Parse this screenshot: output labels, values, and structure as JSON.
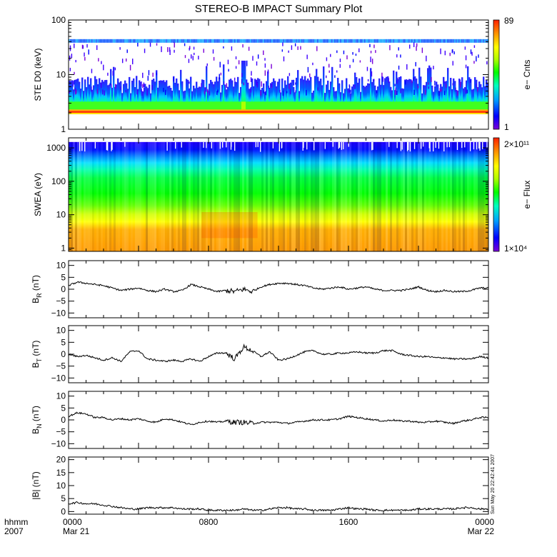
{
  "title": "STEREO-B IMPACT Summary Plot",
  "timestamp": "Sun May 20 22:42:41 2007",
  "time_axis": {
    "label_top": "hhmm",
    "label_bottom": "2007",
    "ticks": [
      {
        "hour": 0,
        "top": "0000",
        "bottom": "Mar 21"
      },
      {
        "hour": 8,
        "top": "0800",
        "bottom": ""
      },
      {
        "hour": 16,
        "top": "1600",
        "bottom": ""
      },
      {
        "hour": 24,
        "top": "0000",
        "bottom": "Mar 22"
      }
    ]
  },
  "colorbars": {
    "ste": {
      "max_label": "89",
      "min_label": "1",
      "title": "e− Cnts"
    },
    "swea": {
      "max_label": "2×10¹¹",
      "min_label": "1×10⁴",
      "title": "e− Flux"
    }
  },
  "colors": {
    "spectrum": [
      "#7b00d8",
      "#0000ff",
      "#00a0ff",
      "#00ffc0",
      "#00ff00",
      "#b0ff00",
      "#ffff00",
      "#ff9000",
      "#ff2000"
    ],
    "line": "#000000"
  },
  "chart_data": [
    {
      "type": "heatmap",
      "id": "ste",
      "ylabel": "STE D0 (keV)",
      "yscale": "log",
      "ylim": [
        1,
        100
      ],
      "yticks": [
        {
          "v": 1,
          "label": "1"
        },
        {
          "v": 10,
          "label": "10"
        },
        {
          "v": 100,
          "label": "100"
        }
      ],
      "xlim": [
        0,
        24
      ],
      "features": {
        "core_band_keV": [
          2.0,
          2.3
        ],
        "fixed_line_keV": 42,
        "event_hour": 10.0
      }
    },
    {
      "type": "heatmap",
      "id": "swea",
      "ylabel": "SWEA (eV)",
      "yscale": "log",
      "ylim": [
        0.8,
        2000
      ],
      "yticks": [
        {
          "v": 1,
          "label": "1"
        },
        {
          "v": 10,
          "label": "10"
        },
        {
          "v": 100,
          "label": "100"
        },
        {
          "v": 1000,
          "label": "1000"
        }
      ],
      "xlim": [
        0,
        24
      ],
      "features": {
        "top_energy_eV": 1500
      }
    },
    {
      "type": "line",
      "id": "br",
      "ylabel_main": "B",
      "ylabel_sub": "R",
      "ylabel_unit": " (nT)",
      "ylim": [
        -12,
        12
      ],
      "yticks": [
        {
          "v": 10,
          "label": "10"
        },
        {
          "v": 5,
          "label": "5"
        },
        {
          "v": 0,
          "label": "0"
        },
        {
          "v": -5,
          "label": "−5"
        },
        {
          "v": -10,
          "label": "−10"
        }
      ],
      "x": [
        0,
        0.5,
        1,
        1.5,
        2,
        2.5,
        3,
        3.5,
        4,
        4.5,
        5,
        5.5,
        6,
        6.5,
        7,
        7.5,
        8,
        8.5,
        9,
        9.5,
        10,
        10.5,
        11,
        11.5,
        12,
        12.5,
        13,
        13.5,
        14,
        14.5,
        15,
        15.5,
        16,
        16.5,
        17,
        17.5,
        18,
        18.5,
        19,
        19.5,
        20,
        20.5,
        21,
        21.5,
        22,
        22.5,
        23,
        23.5,
        24
      ],
      "values": [
        1.5,
        3,
        2.5,
        2,
        1.5,
        0.5,
        -0.5,
        0,
        0.5,
        -0.5,
        -1,
        0,
        -1,
        -0.5,
        2,
        1,
        0,
        -1,
        -0.5,
        -1,
        0,
        -1,
        1,
        2,
        2.5,
        2.5,
        2,
        1.5,
        0.5,
        0,
        0.5,
        1,
        0,
        0.5,
        1,
        0,
        -0.5,
        -0.5,
        -0.5,
        0,
        1,
        -0.5,
        -1,
        -0.5,
        -1,
        -1,
        -0.5,
        0.5,
        0.5
      ]
    },
    {
      "type": "line",
      "id": "bt",
      "ylabel_main": "B",
      "ylabel_sub": "T",
      "ylabel_unit": " (nT)",
      "ylim": [
        -12,
        12
      ],
      "yticks": [
        {
          "v": 10,
          "label": "10"
        },
        {
          "v": 5,
          "label": "5"
        },
        {
          "v": 0,
          "label": "0"
        },
        {
          "v": -5,
          "label": "−5"
        },
        {
          "v": -10,
          "label": "−10"
        }
      ],
      "x": [
        0,
        0.5,
        1,
        1.5,
        2,
        2.5,
        3,
        3.5,
        4,
        4.5,
        5,
        5.5,
        6,
        6.5,
        7,
        7.5,
        8,
        8.5,
        9,
        9.5,
        10,
        10.5,
        11,
        11.5,
        12,
        12.5,
        13,
        13.5,
        14,
        14.5,
        15,
        15.5,
        16,
        16.5,
        17,
        17.5,
        18,
        18.5,
        19,
        19.5,
        20,
        20.5,
        21,
        21.5,
        22,
        22.5,
        23,
        23.5,
        24
      ],
      "values": [
        0,
        -1,
        -0.5,
        -1.5,
        -2.5,
        -1.5,
        -3,
        1,
        1.5,
        -2,
        -2.5,
        -3,
        -2.5,
        -3,
        -2,
        -3,
        -1,
        0.5,
        0.5,
        -2,
        3,
        1.5,
        -1,
        1,
        -2.5,
        -2,
        -0.5,
        1,
        1.5,
        0,
        0,
        0.5,
        0.5,
        1,
        0.5,
        0.5,
        1.5,
        1.5,
        0,
        -0.5,
        -1,
        -1,
        -1.5,
        -1.5,
        -2,
        -2,
        -2,
        -1,
        -1.5
      ]
    },
    {
      "type": "line",
      "id": "bn",
      "ylabel_main": "B",
      "ylabel_sub": "N",
      "ylabel_unit": " (nT)",
      "ylim": [
        -12,
        12
      ],
      "yticks": [
        {
          "v": 10,
          "label": "10"
        },
        {
          "v": 5,
          "label": "5"
        },
        {
          "v": 0,
          "label": "0"
        },
        {
          "v": -5,
          "label": "−5"
        },
        {
          "v": -10,
          "label": "−10"
        }
      ],
      "x": [
        0,
        0.5,
        1,
        1.5,
        2,
        2.5,
        3,
        3.5,
        4,
        4.5,
        5,
        5.5,
        6,
        6.5,
        7,
        7.5,
        8,
        8.5,
        9,
        9.5,
        10,
        10.5,
        11,
        11.5,
        12,
        12.5,
        13,
        13.5,
        14,
        14.5,
        15,
        15.5,
        16,
        16.5,
        17,
        17.5,
        18,
        18.5,
        19,
        19.5,
        20,
        20.5,
        21,
        21.5,
        22,
        22.5,
        23,
        23.5,
        24
      ],
      "values": [
        1.5,
        3,
        2.5,
        1,
        1,
        0,
        0.5,
        0,
        0.5,
        -0.5,
        -1,
        0.5,
        0,
        -1,
        -2,
        -1,
        -0.5,
        -1,
        -0.5,
        -1,
        -1,
        -1.5,
        -1,
        -1,
        -1,
        -1.5,
        -1,
        -0.5,
        0,
        0,
        0,
        0.5,
        1.5,
        1,
        0.5,
        0,
        -0.5,
        0,
        -0.5,
        -0.5,
        -1,
        -1,
        -0.5,
        -1,
        -1.5,
        -0.5,
        0,
        1,
        1
      ]
    },
    {
      "type": "line",
      "id": "bmag",
      "ylabel_main": "|B|",
      "ylabel_sub": "",
      "ylabel_unit": " (nT)",
      "ylim": [
        -1,
        21
      ],
      "yticks": [
        {
          "v": 20,
          "label": "20"
        },
        {
          "v": 15,
          "label": "15"
        },
        {
          "v": 10,
          "label": "10"
        },
        {
          "v": 5,
          "label": "5"
        },
        {
          "v": 0,
          "label": "0"
        }
      ],
      "x": [
        0,
        0.5,
        1,
        1.5,
        2,
        2.5,
        3,
        3.5,
        4,
        4.5,
        5,
        5.5,
        6,
        6.5,
        7,
        7.5,
        8,
        8.5,
        9,
        9.5,
        10,
        10.5,
        11,
        11.5,
        12,
        12.5,
        13,
        13.5,
        14,
        14.5,
        15,
        15.5,
        16,
        16.5,
        17,
        17.5,
        18,
        18.5,
        19,
        19.5,
        20,
        20.5,
        21,
        21.5,
        22,
        22.5,
        23,
        23.5,
        24
      ],
      "values": [
        3,
        3.5,
        3,
        3,
        2.5,
        2,
        1.5,
        1,
        1,
        1.5,
        1.5,
        1.5,
        1.5,
        1,
        1,
        1,
        0.5,
        0.5,
        0.5,
        0.5,
        1,
        0.5,
        0.5,
        1,
        1.5,
        1.5,
        1,
        1,
        0.5,
        0.5,
        0.5,
        1,
        1.5,
        1,
        1,
        0.5,
        0.5,
        0.5,
        0.5,
        0.5,
        1,
        1,
        1,
        1,
        1,
        1.5,
        1.5,
        1,
        1
      ]
    }
  ]
}
